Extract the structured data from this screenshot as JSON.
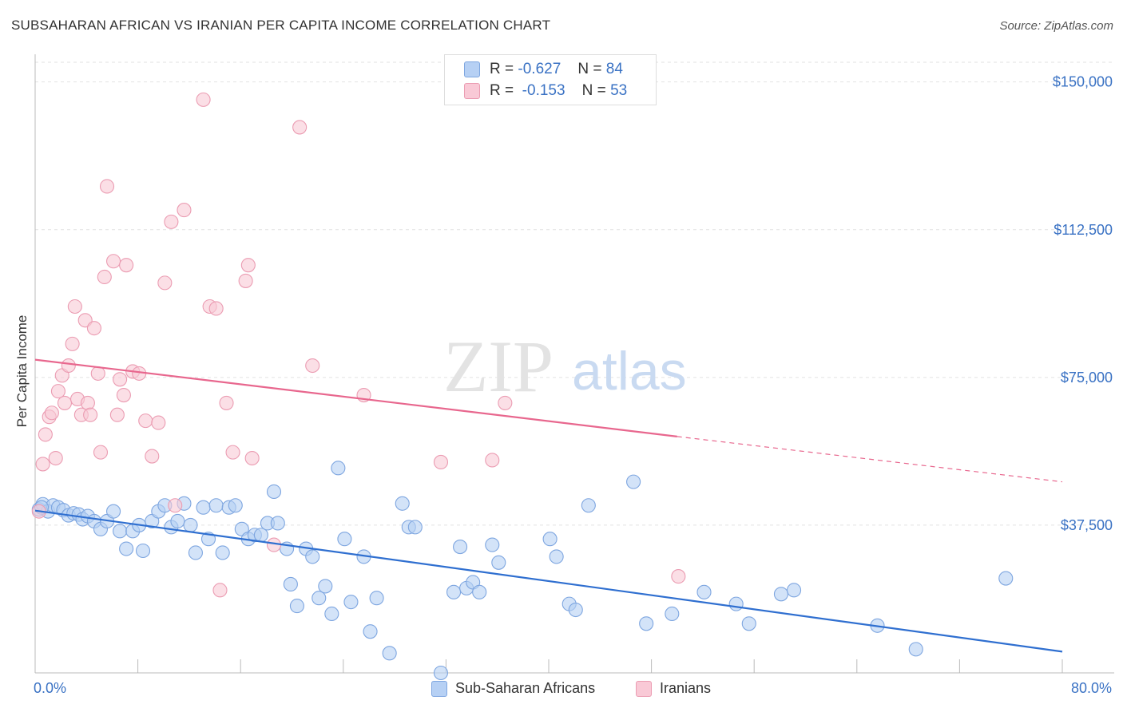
{
  "title": "SUBSAHARAN AFRICAN VS IRANIAN PER CAPITA INCOME CORRELATION CHART",
  "source": "Source: ZipAtlas.com",
  "watermark": {
    "zip": "ZIP",
    "atlas": "atlas"
  },
  "legend": {
    "rows": [
      {
        "r_label": "R =",
        "r_value": "-0.627",
        "n_label": "N =",
        "n_value": "84",
        "color": "#b6d0f4",
        "border": "#7ea6e0"
      },
      {
        "r_label": "R =",
        "r_value": "-0.153",
        "n_label": "N =",
        "n_value": "53",
        "color": "#f9c9d6",
        "border": "#eb9cb2"
      }
    ]
  },
  "bottom_legend": {
    "series1": "Sub-Saharan Africans",
    "series2": "Iranians"
  },
  "chart_data": {
    "type": "scatter",
    "title": "SUBSAHARAN AFRICAN VS IRANIAN PER CAPITA INCOME CORRELATION CHART",
    "xlabel": "",
    "ylabel": "Per Capita Income",
    "xlim": [
      0,
      80
    ],
    "ylim": [
      0,
      155000
    ],
    "x_tick_labels": [
      "0.0%",
      "80.0%"
    ],
    "y_ticks": [
      37500,
      75000,
      112500,
      150000
    ],
    "y_tick_labels": [
      "$37,500",
      "$75,000",
      "$112,500",
      "$150,000"
    ],
    "grid": true,
    "legend_position": "top-center",
    "series": [
      {
        "name": "Sub-Saharan Africans",
        "color": "#7ea6e0",
        "fill": "#b6d0f4",
        "trend": {
          "x": [
            0,
            80
          ],
          "y": [
            41200,
            5400
          ],
          "color": "#2f6fd0"
        },
        "points": [
          [
            0.3,
            41500
          ],
          [
            0.6,
            42800
          ],
          [
            1.0,
            41000
          ],
          [
            1.4,
            42500
          ],
          [
            1.8,
            42000
          ],
          [
            2.2,
            41300
          ],
          [
            2.6,
            40000
          ],
          [
            3.0,
            40500
          ],
          [
            3.4,
            40200
          ],
          [
            3.7,
            39000
          ],
          [
            4.1,
            39800
          ],
          [
            4.6,
            38500
          ],
          [
            5.1,
            36500
          ],
          [
            5.6,
            38500
          ],
          [
            6.1,
            41000
          ],
          [
            6.6,
            36000
          ],
          [
            7.1,
            31500
          ],
          [
            7.6,
            36000
          ],
          [
            8.1,
            37500
          ],
          [
            8.4,
            31000
          ],
          [
            9.1,
            38500
          ],
          [
            9.6,
            41000
          ],
          [
            10.1,
            42500
          ],
          [
            10.6,
            37000
          ],
          [
            11.1,
            38500
          ],
          [
            11.6,
            43000
          ],
          [
            12.1,
            37500
          ],
          [
            12.5,
            30500
          ],
          [
            13.1,
            42000
          ],
          [
            13.5,
            34000
          ],
          [
            14.1,
            42500
          ],
          [
            14.6,
            30500
          ],
          [
            15.1,
            42000
          ],
          [
            15.6,
            42500
          ],
          [
            16.1,
            36500
          ],
          [
            16.6,
            34000
          ],
          [
            17.1,
            35000
          ],
          [
            17.6,
            35000
          ],
          [
            18.1,
            38000
          ],
          [
            18.6,
            46000
          ],
          [
            18.9,
            38000
          ],
          [
            19.6,
            31500
          ],
          [
            19.9,
            22500
          ],
          [
            20.4,
            17000
          ],
          [
            21.1,
            31500
          ],
          [
            21.6,
            29500
          ],
          [
            22.1,
            19000
          ],
          [
            22.6,
            22000
          ],
          [
            23.1,
            15000
          ],
          [
            23.6,
            52000
          ],
          [
            24.1,
            34000
          ],
          [
            24.6,
            18000
          ],
          [
            25.6,
            29500
          ],
          [
            26.1,
            10500
          ],
          [
            26.6,
            19000
          ],
          [
            27.6,
            5000
          ],
          [
            28.6,
            43000
          ],
          [
            29.1,
            37000
          ],
          [
            29.6,
            37000
          ],
          [
            31.6,
            0
          ],
          [
            32.6,
            20500
          ],
          [
            33.1,
            32000
          ],
          [
            33.6,
            21500
          ],
          [
            34.1,
            23000
          ],
          [
            34.6,
            20500
          ],
          [
            35.6,
            32500
          ],
          [
            36.1,
            28000
          ],
          [
            40.1,
            34000
          ],
          [
            40.6,
            29500
          ],
          [
            41.6,
            17500
          ],
          [
            42.1,
            16000
          ],
          [
            43.1,
            42500
          ],
          [
            46.6,
            48500
          ],
          [
            47.6,
            12500
          ],
          [
            49.6,
            15000
          ],
          [
            52.1,
            20500
          ],
          [
            54.6,
            17500
          ],
          [
            55.6,
            12500
          ],
          [
            58.1,
            20000
          ],
          [
            59.1,
            21000
          ],
          [
            65.6,
            12000
          ],
          [
            68.6,
            6000
          ],
          [
            75.6,
            24000
          ],
          [
            0.5,
            42000
          ]
        ]
      },
      {
        "name": "Iranians",
        "color": "#eb9cb2",
        "fill": "#f9c9d6",
        "trend": {
          "x": [
            0,
            50
          ],
          "y": [
            79500,
            60000
          ],
          "color": "#e8678e",
          "dashed_to": {
            "x": 80,
            "y": 48500
          }
        },
        "points": [
          [
            0.3,
            41000
          ],
          [
            0.6,
            53000
          ],
          [
            0.8,
            60500
          ],
          [
            1.1,
            65000
          ],
          [
            1.3,
            66000
          ],
          [
            1.6,
            54500
          ],
          [
            1.8,
            71500
          ],
          [
            2.1,
            75500
          ],
          [
            2.3,
            68500
          ],
          [
            2.6,
            78000
          ],
          [
            2.9,
            83500
          ],
          [
            3.1,
            93000
          ],
          [
            3.3,
            69500
          ],
          [
            3.6,
            65500
          ],
          [
            3.9,
            89500
          ],
          [
            4.1,
            68500
          ],
          [
            4.3,
            65500
          ],
          [
            4.6,
            87500
          ],
          [
            4.9,
            76000
          ],
          [
            5.1,
            56000
          ],
          [
            5.4,
            100500
          ],
          [
            5.6,
            123500
          ],
          [
            6.1,
            104500
          ],
          [
            6.4,
            65500
          ],
          [
            6.6,
            74500
          ],
          [
            6.9,
            70500
          ],
          [
            7.1,
            103500
          ],
          [
            7.6,
            76500
          ],
          [
            8.1,
            76000
          ],
          [
            8.6,
            64000
          ],
          [
            9.1,
            55000
          ],
          [
            9.6,
            63500
          ],
          [
            10.1,
            99000
          ],
          [
            10.6,
            114500
          ],
          [
            10.9,
            42500
          ],
          [
            11.6,
            117500
          ],
          [
            13.1,
            145500
          ],
          [
            13.6,
            93000
          ],
          [
            14.1,
            92500
          ],
          [
            14.4,
            21000
          ],
          [
            14.9,
            68500
          ],
          [
            15.4,
            56000
          ],
          [
            16.4,
            99500
          ],
          [
            16.6,
            103500
          ],
          [
            16.9,
            54500
          ],
          [
            18.6,
            32500
          ],
          [
            20.6,
            138500
          ],
          [
            21.6,
            78000
          ],
          [
            25.6,
            70500
          ],
          [
            31.6,
            53500
          ],
          [
            35.6,
            54000
          ],
          [
            36.6,
            68500
          ],
          [
            50.1,
            24500
          ]
        ]
      }
    ]
  }
}
